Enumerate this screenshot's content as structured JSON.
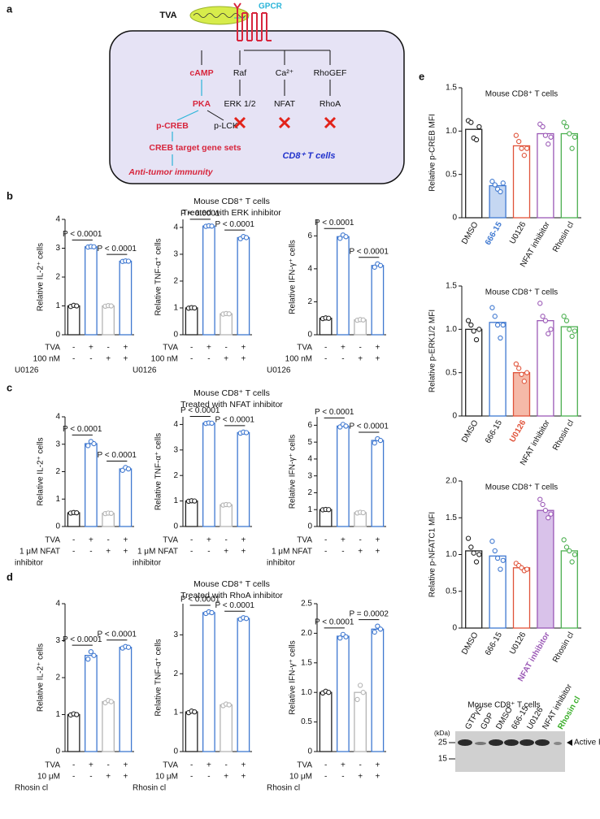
{
  "diagram": {
    "letter": "a",
    "ligand": "TVA",
    "receptor": "GPCR",
    "cell": "CD8⁺ T cells",
    "nodes": [
      "cAMP",
      "PKA",
      "p-CREB",
      "p-LCK",
      "CREB target gene sets",
      "Anti-tumor immunity",
      "Raf",
      "ERK 1/2",
      "Ca²⁺",
      "NFAT",
      "RhoGEF",
      "RhoA"
    ]
  },
  "panels": [
    {
      "letter": "b",
      "title": "Mouse CD8⁺ T cells",
      "subtitle": "Treated with ERK inhibitor"
    },
    {
      "letter": "c",
      "title": "Mouse CD8⁺ T cells",
      "subtitle": "Treated with NFAT inhibitor"
    },
    {
      "letter": "d",
      "title": "Mouse CD8⁺ T cells",
      "subtitle": "Treated with RhoA inhibitor"
    },
    {
      "letter": "e"
    }
  ],
  "chart_data": [
    {
      "type": "bar",
      "ylabel": "Relative  IL-2⁺ cells",
      "ylim": [
        0,
        4
      ],
      "yticks": [
        0,
        1,
        2,
        3,
        4
      ],
      "colors": [
        "#222222",
        "#3f78d0",
        "#b5b5b5",
        "#3f78d0"
      ],
      "values": [
        1.0,
        3.05,
        1.0,
        2.55
      ],
      "points": [
        [
          0.98,
          1.02,
          1.0
        ],
        [
          3.04,
          3.06,
          3.05
        ],
        [
          0.99,
          1.01,
          1.0
        ],
        [
          2.54,
          2.56,
          2.55
        ]
      ],
      "annotations": [
        {
          "text": "P < 0.0001",
          "bars": [
            0,
            1
          ]
        },
        {
          "text": "P < 0.0001",
          "bars": [
            2,
            3
          ]
        }
      ],
      "conditions": [
        {
          "label": "TVA",
          "signs": [
            "-",
            "+",
            "-",
            "+"
          ]
        },
        {
          "label": "100 nM",
          "signs": [
            "-",
            "-",
            "+",
            "+"
          ]
        }
      ],
      "condition_note": "U0126"
    },
    {
      "type": "bar",
      "ylabel": "Relative TNF-α⁺ cells",
      "ylim": [
        0,
        4.3
      ],
      "yticks": [
        0,
        1,
        2,
        3,
        4
      ],
      "colors": [
        "#222222",
        "#3f78d0",
        "#b5b5b5",
        "#3f78d0"
      ],
      "values": [
        1.0,
        4.05,
        0.78,
        3.62
      ],
      "points": [
        [
          0.99,
          1.01,
          1.0
        ],
        [
          4.04,
          4.06,
          4.05
        ],
        [
          0.77,
          0.79,
          0.78
        ],
        [
          3.58,
          3.66,
          3.62
        ]
      ],
      "annotations": [
        {
          "text": "P < 0.0001",
          "bars": [
            0,
            1
          ]
        },
        {
          "text": "P < 0.0001",
          "bars": [
            2,
            3
          ]
        }
      ],
      "conditions": [
        {
          "label": "TVA",
          "signs": [
            "-",
            "+",
            "-",
            "+"
          ]
        },
        {
          "label": "100 nM",
          "signs": [
            "-",
            "-",
            "+",
            "+"
          ]
        }
      ],
      "condition_note": "U0126"
    },
    {
      "type": "bar",
      "ylabel": "Relative IFN-γ⁺ cells",
      "ylim": [
        0,
        7
      ],
      "yticks": [
        0,
        2,
        4,
        6
      ],
      "colors": [
        "#222222",
        "#3f78d0",
        "#b5b5b5",
        "#3f78d0"
      ],
      "values": [
        1.0,
        5.95,
        0.9,
        4.2
      ],
      "points": [
        [
          0.98,
          1.02,
          1.0
        ],
        [
          5.85,
          6.05,
          5.95
        ],
        [
          0.88,
          0.92,
          0.9
        ],
        [
          4.1,
          4.3,
          4.2
        ]
      ],
      "annotations": [
        {
          "text": "P < 0.0001",
          "bars": [
            0,
            1
          ]
        },
        {
          "text": "P < 0.0001",
          "bars": [
            2,
            3
          ]
        }
      ],
      "conditions": [
        {
          "label": "TVA",
          "signs": [
            "-",
            "+",
            "-",
            "+"
          ]
        },
        {
          "label": "100 nM",
          "signs": [
            "-",
            "-",
            "+",
            "+"
          ]
        }
      ],
      "condition_note": "U0126"
    },
    {
      "type": "bar",
      "ylabel": "Relative  IL-2⁺ cells",
      "ylim": [
        0,
        4
      ],
      "yticks": [
        0,
        1,
        2,
        3,
        4
      ],
      "colors": [
        "#222222",
        "#3f78d0",
        "#b5b5b5",
        "#3f78d0"
      ],
      "values": [
        0.5,
        3.02,
        0.48,
        2.1
      ],
      "points": [
        [
          0.49,
          0.51,
          0.5
        ],
        [
          2.95,
          3.1,
          3.02
        ],
        [
          0.47,
          0.49,
          0.48
        ],
        [
          2.05,
          2.15,
          2.1
        ]
      ],
      "annotations": [
        {
          "text": "P < 0.0001",
          "bars": [
            0,
            1
          ]
        },
        {
          "text": "P < 0.0001",
          "bars": [
            2,
            3
          ]
        }
      ],
      "conditions": [
        {
          "label": "TVA",
          "signs": [
            "-",
            "+",
            "-",
            "+"
          ]
        },
        {
          "label": "1 μM NFAT",
          "signs": [
            "-",
            "-",
            "+",
            "+"
          ]
        }
      ],
      "condition_note": "inhibitor"
    },
    {
      "type": "bar",
      "ylabel": "Relative TNF-α⁺ cells",
      "ylim": [
        0,
        4.3
      ],
      "yticks": [
        0,
        1,
        2,
        3,
        4
      ],
      "colors": [
        "#222222",
        "#3f78d0",
        "#b5b5b5",
        "#3f78d0"
      ],
      "values": [
        1.0,
        4.05,
        0.85,
        3.68
      ],
      "points": [
        [
          0.99,
          1.01,
          1.0
        ],
        [
          4.04,
          4.06,
          4.05
        ],
        [
          0.84,
          0.86,
          0.85
        ],
        [
          3.66,
          3.7,
          3.68
        ]
      ],
      "annotations": [
        {
          "text": "P < 0.0001",
          "bars": [
            0,
            1
          ]
        },
        {
          "text": "P < 0.0001",
          "bars": [
            2,
            3
          ]
        }
      ],
      "conditions": [
        {
          "label": "TVA",
          "signs": [
            "-",
            "+",
            "-",
            "+"
          ]
        },
        {
          "label": "1 μM NFAT",
          "signs": [
            "-",
            "-",
            "+",
            "+"
          ]
        }
      ],
      "condition_note": "inhibitor"
    },
    {
      "type": "bar",
      "ylabel": "Relative IFN-γ⁺ cells",
      "ylim": [
        0,
        6.5
      ],
      "yticks": [
        0,
        1,
        2,
        3,
        4,
        5,
        6
      ],
      "colors": [
        "#222222",
        "#3f78d0",
        "#b5b5b5",
        "#3f78d0"
      ],
      "values": [
        1.0,
        5.95,
        0.82,
        5.1
      ],
      "points": [
        [
          0.99,
          1.01,
          1.0
        ],
        [
          5.9,
          6.05,
          5.95
        ],
        [
          0.8,
          0.84,
          0.82
        ],
        [
          4.95,
          5.2,
          5.1
        ]
      ],
      "annotations": [
        {
          "text": "P < 0.0001",
          "bars": [
            0,
            1
          ]
        },
        {
          "text": "P < 0.0001",
          "bars": [
            2,
            3
          ]
        }
      ],
      "conditions": [
        {
          "label": "TVA",
          "signs": [
            "-",
            "+",
            "-",
            "+"
          ]
        },
        {
          "label": "1 μM NFAT",
          "signs": [
            "-",
            "-",
            "+",
            "+"
          ]
        }
      ],
      "condition_note": "inhibitor"
    },
    {
      "type": "bar",
      "ylabel": "Relative  IL-2⁺ cells",
      "ylim": [
        0,
        4
      ],
      "yticks": [
        0,
        1,
        2,
        3,
        4
      ],
      "colors": [
        "#222222",
        "#3f78d0",
        "#b5b5b5",
        "#3f78d0"
      ],
      "values": [
        1.0,
        2.6,
        1.35,
        2.82
      ],
      "points": [
        [
          0.99,
          1.02,
          1.0
        ],
        [
          2.5,
          2.7,
          2.6
        ],
        [
          1.32,
          1.38,
          1.35
        ],
        [
          2.8,
          2.84,
          2.82
        ]
      ],
      "annotations": [
        {
          "text": "P < 0.0001",
          "bars": [
            0,
            1
          ]
        },
        {
          "text": "P < 0.0001",
          "bars": [
            2,
            3
          ]
        }
      ],
      "conditions": [
        {
          "label": "TVA",
          "signs": [
            "-",
            "+",
            "-",
            "+"
          ]
        },
        {
          "label": "10 μM",
          "signs": [
            "-",
            "-",
            "+",
            "+"
          ]
        }
      ],
      "condition_note": "Rhosin cl"
    },
    {
      "type": "bar",
      "ylabel": "Relative TNF-α⁺ cells",
      "ylim": [
        0,
        3.8
      ],
      "yticks": [
        0,
        1,
        2,
        3
      ],
      "colors": [
        "#222222",
        "#3f78d0",
        "#b5b5b5",
        "#3f78d0"
      ],
      "values": [
        1.02,
        3.57,
        1.2,
        3.42
      ],
      "points": [
        [
          1.0,
          1.04,
          1.02
        ],
        [
          3.55,
          3.59,
          3.57
        ],
        [
          1.18,
          1.22,
          1.2
        ],
        [
          3.4,
          3.44,
          3.42
        ]
      ],
      "annotations": [
        {
          "text": "P < 0.0001",
          "bars": [
            0,
            1
          ]
        },
        {
          "text": "P < 0.0001",
          "bars": [
            2,
            3
          ]
        }
      ],
      "conditions": [
        {
          "label": "TVA",
          "signs": [
            "-",
            "+",
            "-",
            "+"
          ]
        },
        {
          "label": "10 μM",
          "signs": [
            "-",
            "-",
            "+",
            "+"
          ]
        }
      ],
      "condition_note": "Rhosin cl"
    },
    {
      "type": "bar",
      "ylabel": "Relative IFN-γ⁺ cells",
      "ylim": [
        0,
        2.5
      ],
      "yticks": [
        0,
        0.5,
        {
          "value": 1,
          "label": "1.0"
        },
        1.5,
        {
          "value": 2,
          "label": "2.0"
        },
        2.5
      ],
      "colors": [
        "#222222",
        "#3f78d0",
        "#b5b5b5",
        "#3f78d0"
      ],
      "values": [
        1.0,
        1.95,
        1.0,
        2.07
      ],
      "points": [
        [
          0.99,
          1.02,
          1.0
        ],
        [
          1.92,
          1.98,
          1.94
        ],
        [
          0.88,
          1.12,
          1.0
        ],
        [
          2.02,
          2.12,
          2.07
        ]
      ],
      "annotations": [
        {
          "text": "P < 0.0001",
          "bars": [
            0,
            1
          ]
        },
        {
          "text": "P = 0.0002",
          "bars": [
            2,
            3
          ]
        }
      ],
      "conditions": [
        {
          "label": "TVA",
          "signs": [
            "-",
            "+",
            "-",
            "+"
          ]
        },
        {
          "label": "10 μM",
          "signs": [
            "-",
            "-",
            "+",
            "+"
          ]
        }
      ],
      "condition_note": "Rhosin cl"
    },
    {
      "type": "bar",
      "title": "Mouse CD8⁺ T cells",
      "ylabel": "Relative p-CREB MFI",
      "ylim": [
        0,
        1.5
      ],
      "yticks": [
        0,
        0.5,
        {
          "value": 1,
          "label": "1.0"
        },
        1.5
      ],
      "categories": [
        "DMSO",
        "666-15",
        "U0126",
        "NFAT inhibitor",
        "Rhosin cl"
      ],
      "colors": [
        "#222222",
        "#3f78d0",
        "#e0533a",
        "#9b59b6",
        "#4caf50"
      ],
      "highlight": 1,
      "highlight_fill": "#c5d7f2",
      "values": [
        1.02,
        0.37,
        0.83,
        0.97,
        0.97
      ],
      "points": [
        [
          1.12,
          1.1,
          0.92,
          0.9,
          1.05
        ],
        [
          0.42,
          0.38,
          0.33,
          0.3,
          0.4
        ],
        [
          0.95,
          0.88,
          0.8,
          0.72,
          0.8
        ],
        [
          1.08,
          1.05,
          0.95,
          0.85,
          0.93
        ],
        [
          1.1,
          1.05,
          0.97,
          0.8,
          0.93
        ]
      ]
    },
    {
      "type": "bar",
      "title": "Mouse CD8⁺ T cells",
      "ylabel": "Relative p-ERK1/2 MFI",
      "ylim": [
        0,
        1.5
      ],
      "yticks": [
        0,
        0.5,
        {
          "value": 1,
          "label": "1.0"
        },
        1.5
      ],
      "categories": [
        "DMSO",
        "666-15",
        "U0126",
        "NFAT inhibitor",
        "Rhosin cl"
      ],
      "colors": [
        "#222222",
        "#3f78d0",
        "#e0533a",
        "#9b59b6",
        "#4caf50"
      ],
      "highlight": 2,
      "highlight_fill": "#f5b9a8",
      "values": [
        1.0,
        1.08,
        0.5,
        1.1,
        1.03
      ],
      "points": [
        [
          1.1,
          1.05,
          0.98,
          0.88,
          1.0
        ],
        [
          1.25,
          1.15,
          1.05,
          0.9,
          1.05
        ],
        [
          0.6,
          0.55,
          0.48,
          0.4,
          0.5
        ],
        [
          1.3,
          1.15,
          1.1,
          0.95,
          1.0
        ],
        [
          1.15,
          1.1,
          1.0,
          0.92,
          0.98
        ]
      ]
    },
    {
      "type": "bar",
      "title": "Mouse CD8⁺ T cells",
      "ylabel": "Relative p-NFATC1 MFI",
      "ylim": [
        0,
        2
      ],
      "yticks": [
        0,
        0.5,
        {
          "value": 1,
          "label": "1.0"
        },
        1.5,
        {
          "value": 2,
          "label": "2.0"
        }
      ],
      "categories": [
        "DMSO",
        "666-15",
        "U0126",
        "NFAT inhibitor",
        "Rhosin cl"
      ],
      "colors": [
        "#222222",
        "#3f78d0",
        "#e0533a",
        "#9b59b6",
        "#4caf50"
      ],
      "highlight": 3,
      "highlight_fill": "#d9c2ea",
      "values": [
        1.05,
        0.98,
        0.82,
        1.6,
        1.05
      ],
      "points": [
        [
          1.22,
          1.1,
          1.02,
          0.9,
          1.0
        ],
        [
          1.18,
          1.05,
          0.95,
          0.8,
          0.92
        ],
        [
          0.88,
          0.85,
          0.82,
          0.78,
          0.8
        ],
        [
          1.75,
          1.68,
          1.6,
          1.5,
          1.55
        ],
        [
          1.2,
          1.1,
          1.05,
          0.9,
          1.0
        ]
      ]
    }
  ],
  "blot": {
    "title": "Mouse CD8⁺ T cells",
    "unit": "(kDa)",
    "markers": [
      "25",
      "15"
    ],
    "band_label": "Active Rho",
    "lanes": [
      "GTPγS",
      "GDP",
      "DMSO",
      "666-15",
      "U0126",
      "NFAT inhibitor",
      "Rhosin cl"
    ],
    "highlight_lane": 6
  }
}
